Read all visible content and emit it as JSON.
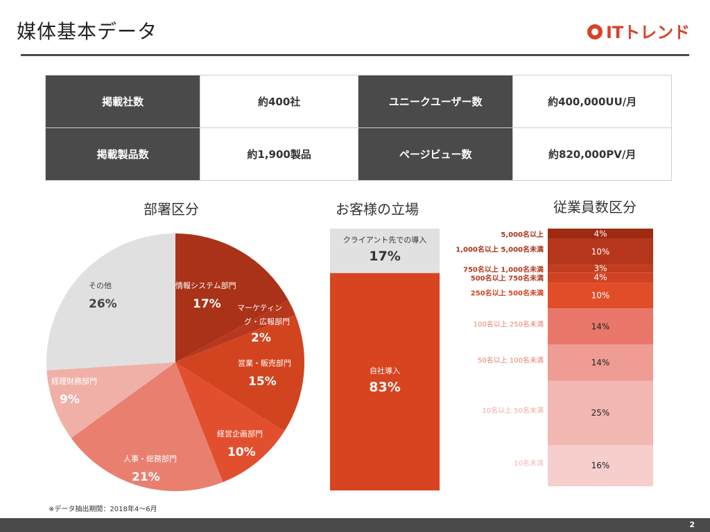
{
  "page": {
    "title": "媒体基本データ",
    "logo_text": "ITトレンド",
    "footnote": "※データ抽出期間：2018年4〜6月",
    "page_number": "2"
  },
  "stats": [
    {
      "label": "掲載社数",
      "value": "約400社",
      "label2": "ユニークユーザー数",
      "value2": "約400,000UU/月"
    },
    {
      "label": "掲載製品数",
      "value": "約1,900製品",
      "label2": "ページビュー数",
      "value2": "約820,000PV/月"
    }
  ],
  "sections": {
    "pie_title": "部署区分",
    "bar_title": "お客様の立場",
    "stack_title": "従業員数区分"
  },
  "colors": {
    "brand_red": "#d9412a",
    "dark_gray": "#4a4a4a"
  },
  "chart_data": [
    {
      "type": "pie",
      "title": "部署区分",
      "slices": [
        {
          "label": "情報システム部門",
          "value": 17,
          "display": "17%",
          "color": "#a93218"
        },
        {
          "label": "マーケティング・広報部門",
          "value": 2,
          "display": "2%",
          "color": "#b5381f"
        },
        {
          "label": "営業・販売部門",
          "value": 15,
          "display": "15%",
          "color": "#d2441f"
        },
        {
          "label": "経営企画部門",
          "value": 10,
          "display": "10%",
          "color": "#e24f2e"
        },
        {
          "label": "人事・総務部門",
          "value": 21,
          "display": "21%",
          "color": "#e9806f"
        },
        {
          "label": "経理財務部門",
          "value": 9,
          "display": "9%",
          "color": "#f0b0a8"
        },
        {
          "label": "その他",
          "value": 26,
          "display": "26%",
          "color": "#e0e0e0"
        }
      ]
    },
    {
      "type": "bar",
      "title": "お客様の立場",
      "segments": [
        {
          "label": "クライアント先での導入",
          "value": 17,
          "display": "17%",
          "color": "#e1e1e1"
        },
        {
          "label": "自社導入",
          "value": 83,
          "display": "83%",
          "color": "#d84320"
        }
      ]
    },
    {
      "type": "bar",
      "title": "従業員数区分",
      "segments": [
        {
          "label": "5,000名以上",
          "value": 4,
          "display": "4%",
          "color": "#9e2a12"
        },
        {
          "label": "1,000名以上 5,000名未満",
          "value": 10,
          "display": "10%",
          "color": "#b5361a"
        },
        {
          "label": "750名以上 1,000名未満",
          "value": 3,
          "display": "3%",
          "color": "#c23d1f"
        },
        {
          "label": "500名以上 750名未満",
          "value": 4,
          "display": "4%",
          "color": "#d04222"
        },
        {
          "label": "250名以上 500名未満",
          "value": 10,
          "display": "10%",
          "color": "#e24d29"
        },
        {
          "label": "100名以上 250名未満",
          "value": 14,
          "display": "14%",
          "color": "#e9786a"
        },
        {
          "label": "50名以上 100名未満",
          "value": 14,
          "display": "14%",
          "color": "#ef9d94"
        },
        {
          "label": "10名以上 50名未満",
          "value": 25,
          "display": "25%",
          "color": "#f3b7b2"
        },
        {
          "label": "10名未満",
          "value": 16,
          "display": "16%",
          "color": "#f6cfcd"
        }
      ]
    }
  ]
}
